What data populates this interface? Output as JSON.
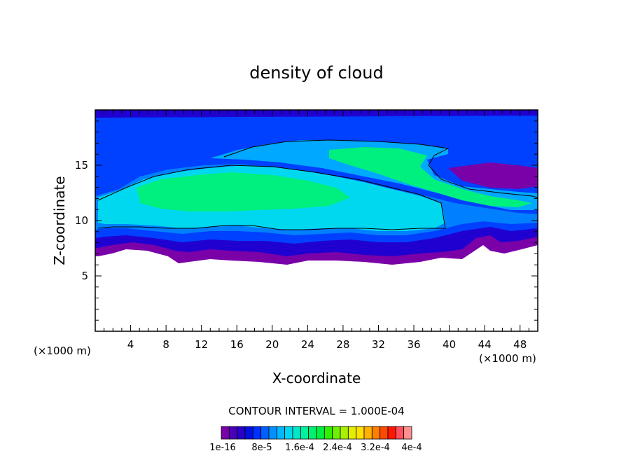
{
  "chart_data": {
    "type": "heatmap",
    "title": "density of cloud",
    "xlabel": "X-coordinate",
    "ylabel": "Z-coordinate",
    "x_unit": "(×1000 m)",
    "z_unit": "(×1000 m)",
    "xlim": [
      0,
      50
    ],
    "ylim": [
      0,
      20
    ],
    "xticks": [
      "4",
      "8",
      "12",
      "16",
      "20",
      "24",
      "28",
      "32",
      "36",
      "40",
      "44",
      "48"
    ],
    "yticks": [
      "5",
      "10",
      "15"
    ],
    "contour_interval_text": "CONTOUR INTERVAL = 1.000E-04",
    "colorbar": {
      "colors": [
        "#7a00a8",
        "#4a00b8",
        "#2800c8",
        "#0010e0",
        "#0030ff",
        "#0060ff",
        "#0090ff",
        "#00b8ff",
        "#00d8f0",
        "#00e8c8",
        "#00f0a0",
        "#00f070",
        "#00f040",
        "#30f000",
        "#70f000",
        "#a8f000",
        "#e0f000",
        "#ffe000",
        "#ffb000",
        "#ff8000",
        "#ff4800",
        "#ff1800",
        "#ff5060",
        "#ff9090"
      ],
      "labels": [
        "1e-16",
        "8e-5",
        "1.6e-4",
        "2.4e-4",
        "3.2e-4",
        "4e-4"
      ]
    },
    "field_description": "cloud layer between about 6 and 20 km with maximum near 11-17 km"
  }
}
